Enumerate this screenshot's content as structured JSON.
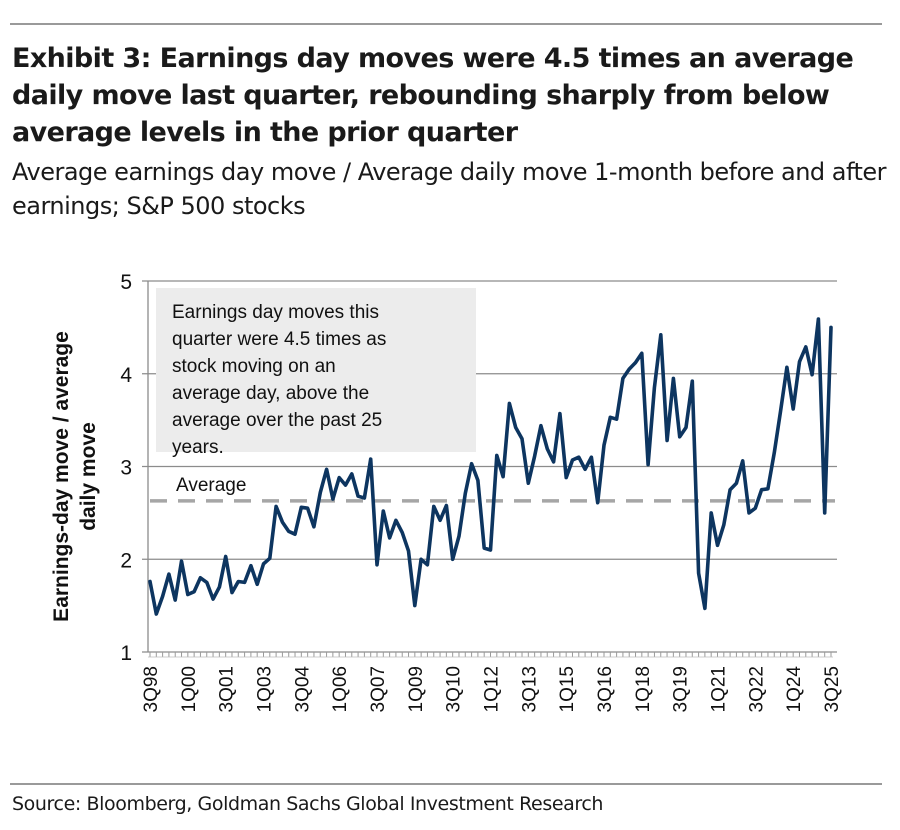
{
  "header": {
    "title": "Exhibit 3: Earnings day moves were 4.5 times an average daily move last quarter, rebounding sharply from below average levels in the prior quarter",
    "subtitle": "Average earnings day move / Average daily move 1-month before and after earnings; S&P 500 stocks"
  },
  "footer": {
    "source": "Source: Bloomberg, Goldman Sachs Global Investment Research"
  },
  "chart_data": {
    "type": "line",
    "title": "Exhibit 3: Earnings day moves were 4.5 times an average daily move last quarter, rebounding sharply from below average levels in the prior quarter",
    "subtitle": "Average earnings day move / Average daily move 1-month before and after earnings; S&P 500 stocks",
    "xlabel": "",
    "ylabel_lines": [
      "Earnings-day move / average",
      "daily move"
    ],
    "ylim": [
      1,
      5
    ],
    "yticks": [
      1,
      2,
      3,
      4,
      5
    ],
    "grid": "horizontal",
    "x_start": "3Q98",
    "x_end": "3Q25",
    "x_frequency": "quarterly",
    "xtick_labels": [
      "3Q98",
      "1Q00",
      "3Q01",
      "1Q03",
      "3Q04",
      "1Q06",
      "3Q07",
      "1Q09",
      "3Q10",
      "1Q12",
      "3Q13",
      "1Q15",
      "3Q16",
      "1Q18",
      "3Q19",
      "1Q21",
      "3Q22",
      "1Q24",
      "3Q25"
    ],
    "series": [
      {
        "name": "Earnings-day move / average daily move",
        "color": "#0d3560",
        "values": [
          1.76,
          1.41,
          1.6,
          1.84,
          1.56,
          1.98,
          1.62,
          1.65,
          1.8,
          1.75,
          1.57,
          1.7,
          2.03,
          1.64,
          1.76,
          1.75,
          1.93,
          1.73,
          1.95,
          2.01,
          2.57,
          2.4,
          2.3,
          2.27,
          2.56,
          2.55,
          2.35,
          2.72,
          2.97,
          2.65,
          2.88,
          2.8,
          2.92,
          2.68,
          2.66,
          3.08,
          1.94,
          2.52,
          2.23,
          2.42,
          2.29,
          2.09,
          1.5,
          2.0,
          1.94,
          2.57,
          2.42,
          2.58,
          2.0,
          2.25,
          2.71,
          3.03,
          2.85,
          2.12,
          2.1,
          3.12,
          2.89,
          3.68,
          3.42,
          3.3,
          2.82,
          3.11,
          3.44,
          3.19,
          3.05,
          3.57,
          2.88,
          3.07,
          3.1,
          2.97,
          3.1,
          2.61,
          3.23,
          3.53,
          3.51,
          3.95,
          4.05,
          4.12,
          4.22,
          3.02,
          3.85,
          4.42,
          3.28,
          3.95,
          3.32,
          3.42,
          3.92,
          1.85,
          1.47,
          2.5,
          2.15,
          2.37,
          2.75,
          2.82,
          3.06,
          2.5,
          2.55,
          2.75,
          2.76,
          3.15,
          3.6,
          4.07,
          3.62,
          4.13,
          4.29,
          3.99,
          4.59,
          2.5,
          4.5
        ]
      }
    ],
    "reference_lines": [
      {
        "name": "Average",
        "value": 2.63,
        "style": "dashed",
        "color": "#a6a6a6"
      }
    ],
    "annotations": [
      {
        "type": "callout-box",
        "lines": [
          "Earnings day moves this",
          "quarter were 4.5 times as",
          "stock moving on an",
          "average day, above the",
          "average over the past 25",
          "years."
        ],
        "background": "#ececec",
        "position": "top-left"
      }
    ]
  }
}
